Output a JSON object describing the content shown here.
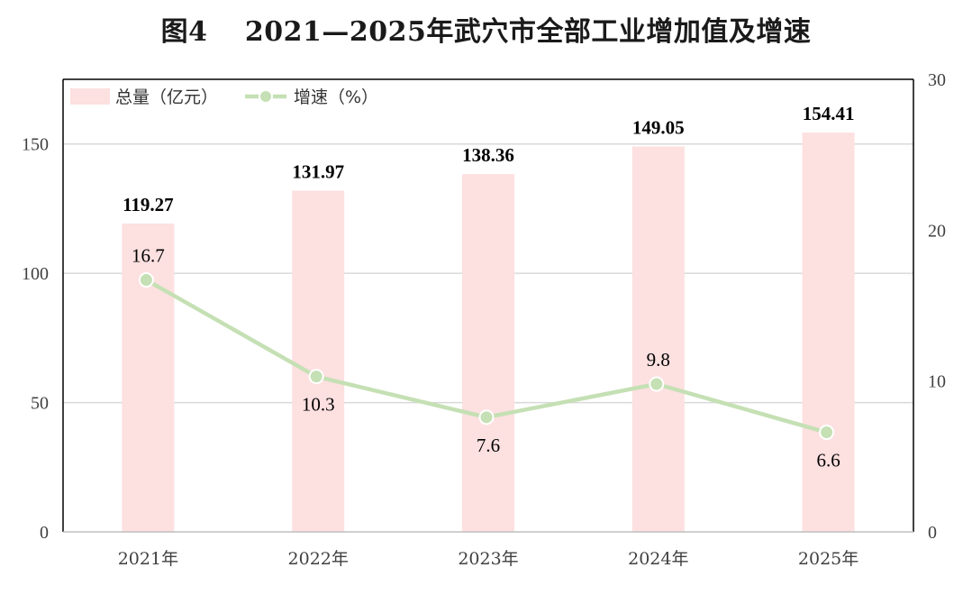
{
  "chart_data": {
    "type": "bar",
    "title": "图4　 2021—2025年武穴市全部工业增加值及增速",
    "categories": [
      "2021年",
      "2022年",
      "2023年",
      "2024年",
      "2025年"
    ],
    "series": [
      {
        "name": "总量（亿元）",
        "type": "bar",
        "axis": "left",
        "values": [
          119.27,
          131.97,
          138.36,
          149.05,
          154.41
        ],
        "color": "#fde0e0"
      },
      {
        "name": "增速（%）",
        "type": "line",
        "axis": "right",
        "values": [
          16.7,
          10.3,
          7.6,
          9.8,
          6.6
        ],
        "color": "#c5e0b4"
      }
    ],
    "bar_labels": [
      "119.27",
      "131.97",
      "138.36",
      "149.05",
      "154.41"
    ],
    "line_labels": [
      "16.7",
      "10.3",
      "7.6",
      "9.8",
      "6.6"
    ],
    "y_left": {
      "ylim": [
        0,
        175
      ],
      "ticks": [
        "0",
        "50",
        "100",
        "150"
      ]
    },
    "y_right": {
      "ylim": [
        0,
        30
      ],
      "ticks": [
        "0",
        "10",
        "20",
        "30"
      ]
    },
    "grid": true,
    "legend_position": "top-left"
  }
}
